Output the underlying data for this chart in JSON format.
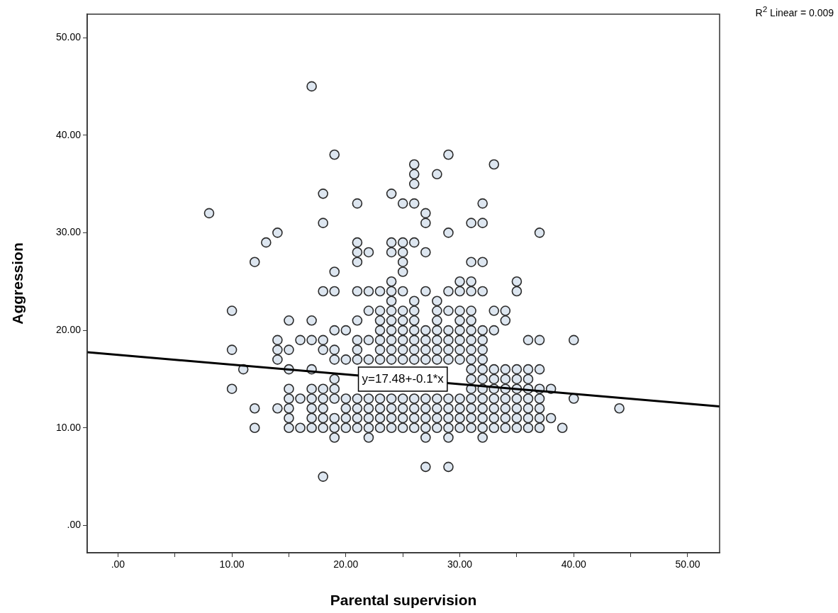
{
  "chart_data": {
    "type": "scatter",
    "xlabel": "Parental supervision",
    "ylabel": "Aggression",
    "xlim": [
      -2.7,
      52.8
    ],
    "ylim": [
      -2.8,
      52.4
    ],
    "xticks": [
      {
        "value": 0,
        "label": ".00"
      },
      {
        "value": 5,
        "label": null
      },
      {
        "value": 10,
        "label": "10.00"
      },
      {
        "value": 15,
        "label": null
      },
      {
        "value": 20,
        "label": "20.00"
      },
      {
        "value": 25,
        "label": null
      },
      {
        "value": 30,
        "label": "30.00"
      },
      {
        "value": 35,
        "label": null
      },
      {
        "value": 40,
        "label": "40.00"
      },
      {
        "value": 45,
        "label": null
      },
      {
        "value": 50,
        "label": "50.00"
      }
    ],
    "yticks": [
      {
        "value": 0,
        "label": ".00"
      },
      {
        "value": 10,
        "label": "10.00"
      },
      {
        "value": 20,
        "label": "20.00"
      },
      {
        "value": 30,
        "label": "30.00"
      },
      {
        "value": 40,
        "label": "40.00"
      },
      {
        "value": 50,
        "label": "50.00"
      }
    ],
    "grid": false,
    "legend": false,
    "marker": "circle",
    "annotations": [
      "R$^{2}$ Linear = 0.009",
      {
        "text": "y=17.48+-0.1*x",
        "x": 25,
        "y": 15
      }
    ],
    "series": [
      {
        "color": "#dde6f0",
        "x": [
          8,
          10,
          10,
          10,
          11,
          12,
          12,
          12,
          13,
          14,
          14,
          14,
          14,
          14,
          15,
          15,
          15,
          15,
          15,
          15,
          15,
          15,
          16,
          16,
          16,
          17,
          17,
          17,
          17,
          17,
          17,
          17,
          17,
          17,
          18,
          18,
          18,
          18,
          18,
          18,
          18,
          18,
          18,
          18,
          18,
          19,
          19,
          19,
          19,
          19,
          19,
          19,
          19,
          19,
          19,
          19,
          19,
          20,
          20,
          20,
          20,
          20,
          20,
          21,
          21,
          21,
          21,
          21,
          21,
          21,
          21,
          21,
          21,
          21,
          21,
          21,
          22,
          22,
          22,
          22,
          22,
          22,
          22,
          22,
          22,
          22,
          23,
          23,
          23,
          23,
          23,
          23,
          23,
          23,
          23,
          23,
          23,
          24,
          24,
          24,
          24,
          24,
          24,
          24,
          24,
          24,
          24,
          24,
          24,
          24,
          24,
          24,
          24,
          25,
          25,
          25,
          25,
          25,
          25,
          25,
          25,
          25,
          25,
          25,
          25,
          25,
          25,
          25,
          25,
          26,
          26,
          26,
          26,
          26,
          26,
          26,
          26,
          26,
          26,
          26,
          26,
          26,
          26,
          26,
          26,
          27,
          27,
          27,
          27,
          27,
          27,
          27,
          27,
          27,
          27,
          27,
          27,
          27,
          27,
          28,
          28,
          28,
          28,
          28,
          28,
          28,
          28,
          28,
          28,
          28,
          28,
          29,
          29,
          29,
          29,
          29,
          29,
          29,
          29,
          29,
          29,
          29,
          29,
          29,
          29,
          30,
          30,
          30,
          30,
          30,
          30,
          30,
          30,
          30,
          30,
          30,
          30,
          31,
          31,
          31,
          31,
          31,
          31,
          31,
          31,
          31,
          31,
          31,
          31,
          31,
          31,
          31,
          31,
          31,
          32,
          32,
          32,
          32,
          32,
          32,
          32,
          32,
          32,
          32,
          32,
          32,
          32,
          32,
          32,
          32,
          33,
          33,
          33,
          33,
          33,
          33,
          33,
          33,
          33,
          33,
          34,
          34,
          34,
          34,
          34,
          34,
          34,
          34,
          34,
          35,
          35,
          35,
          35,
          35,
          35,
          35,
          35,
          35,
          36,
          36,
          36,
          36,
          36,
          36,
          36,
          36,
          37,
          37,
          37,
          37,
          37,
          37,
          37,
          37,
          38,
          38,
          39,
          40,
          40,
          44
        ],
        "values": [
          32,
          22,
          18,
          14,
          16,
          27,
          12,
          10,
          29,
          30,
          19,
          18,
          17,
          12,
          21,
          18,
          16,
          14,
          13,
          12,
          11,
          10,
          19,
          13,
          10,
          45,
          21,
          19,
          16,
          14,
          13,
          12,
          11,
          10,
          34,
          31,
          24,
          19,
          18,
          14,
          13,
          12,
          11,
          10,
          5,
          38,
          26,
          24,
          20,
          18,
          17,
          15,
          14,
          13,
          11,
          10,
          9,
          20,
          17,
          13,
          12,
          11,
          10,
          33,
          29,
          28,
          27,
          24,
          21,
          19,
          18,
          17,
          13,
          12,
          11,
          10,
          28,
          24,
          22,
          19,
          17,
          13,
          12,
          11,
          10,
          9,
          24,
          22,
          21,
          20,
          19,
          18,
          17,
          13,
          12,
          11,
          10,
          34,
          29,
          28,
          25,
          24,
          23,
          22,
          21,
          20,
          19,
          18,
          17,
          13,
          12,
          11,
          10,
          33,
          29,
          28,
          27,
          26,
          24,
          22,
          21,
          20,
          19,
          18,
          17,
          13,
          12,
          11,
          10,
          37,
          36,
          35,
          33,
          29,
          23,
          22,
          21,
          20,
          19,
          18,
          17,
          13,
          12,
          11,
          10,
          32,
          31,
          28,
          24,
          20,
          19,
          18,
          17,
          13,
          12,
          11,
          10,
          9,
          6,
          36,
          23,
          22,
          21,
          20,
          19,
          18,
          17,
          13,
          12,
          11,
          10,
          38,
          30,
          24,
          22,
          20,
          19,
          18,
          17,
          13,
          12,
          11,
          10,
          9,
          6,
          25,
          24,
          22,
          21,
          20,
          19,
          18,
          17,
          13,
          12,
          11,
          10,
          31,
          27,
          25,
          24,
          22,
          21,
          20,
          19,
          18,
          17,
          16,
          15,
          14,
          13,
          12,
          11,
          10,
          33,
          31,
          27,
          24,
          20,
          19,
          18,
          17,
          16,
          15,
          14,
          13,
          12,
          11,
          10,
          9,
          37,
          22,
          20,
          16,
          15,
          14,
          13,
          12,
          11,
          10,
          22,
          21,
          16,
          15,
          14,
          13,
          12,
          11,
          10,
          25,
          24,
          16,
          15,
          14,
          13,
          12,
          11,
          10,
          19,
          16,
          15,
          14,
          13,
          12,
          11,
          10,
          30,
          19,
          16,
          14,
          13,
          12,
          11,
          10,
          14,
          11,
          10,
          19,
          13,
          12
        ]
      },
      {
        "type": "line",
        "color": "#000000",
        "marker": "none",
        "x": [
          -2.7,
          52.8
        ],
        "values": [
          17.75,
          12.2
        ]
      }
    ]
  }
}
